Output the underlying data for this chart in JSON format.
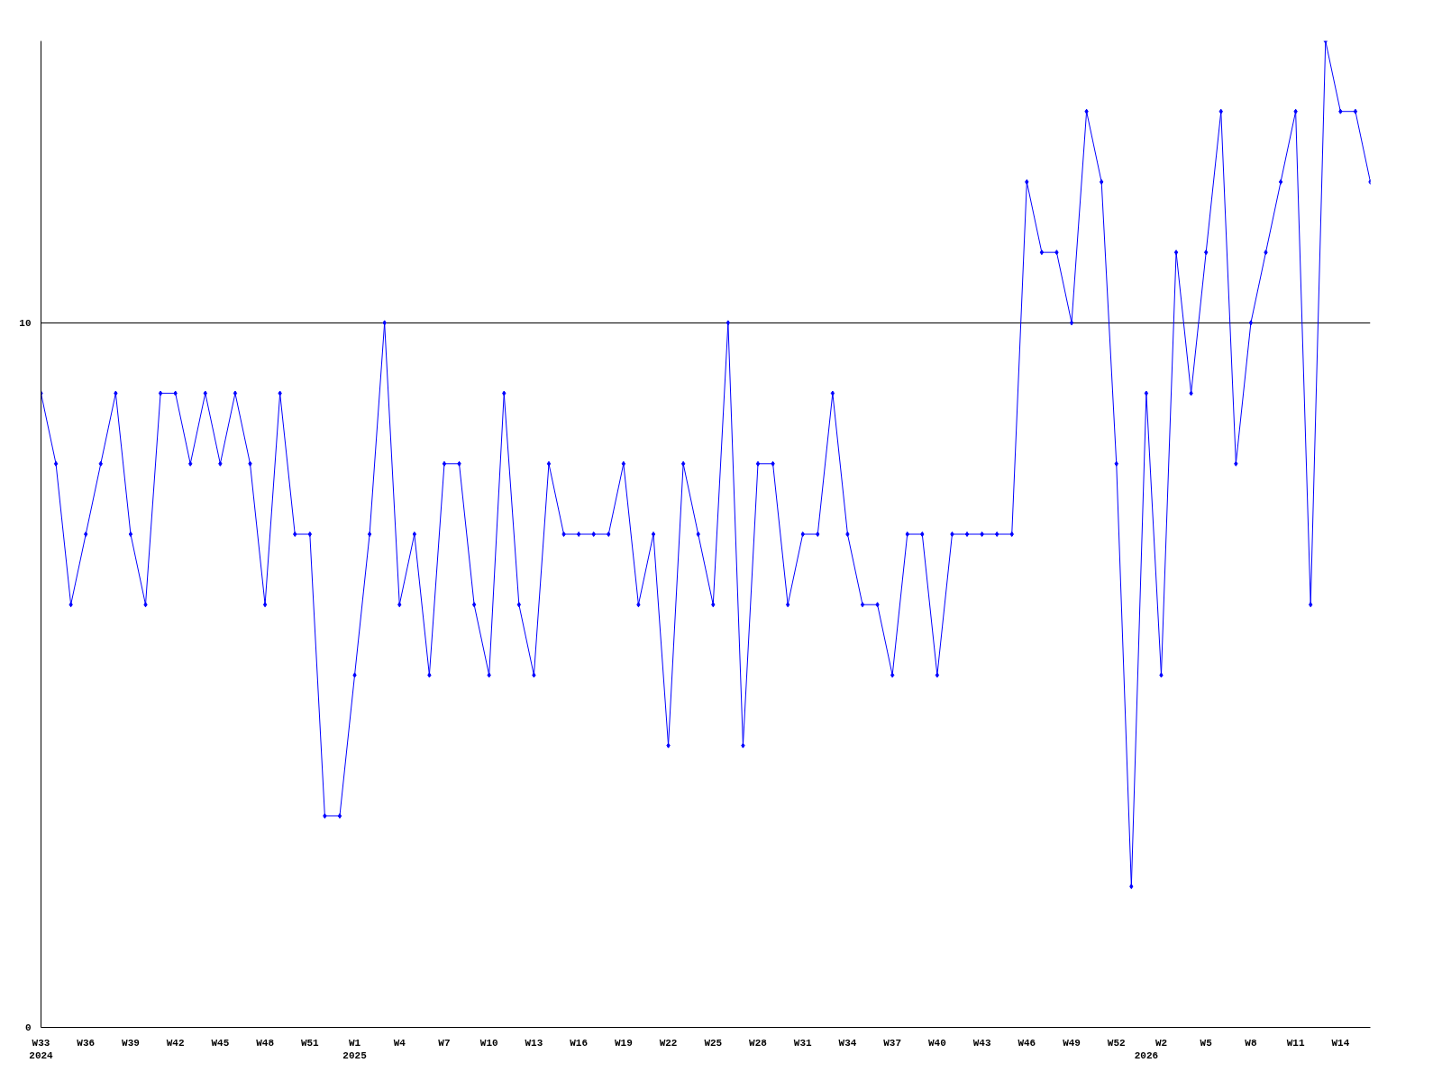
{
  "chart_data": {
    "type": "line",
    "categories": [
      "W33\n2024",
      null,
      null,
      "W36",
      null,
      null,
      "W39",
      null,
      null,
      "W42",
      null,
      null,
      "W45",
      null,
      null,
      "W48",
      null,
      null,
      "W51",
      null,
      null,
      "W1\n2025",
      null,
      null,
      "W4",
      null,
      null,
      "W7",
      null,
      null,
      "W10",
      null,
      null,
      "W13",
      null,
      null,
      "W16",
      null,
      null,
      "W19",
      null,
      null,
      "W22",
      null,
      null,
      "W25",
      null,
      null,
      "W28",
      null,
      null,
      "W31",
      null,
      null,
      "W34",
      null,
      null,
      "W37",
      null,
      null,
      "W40",
      null,
      null,
      "W43",
      null,
      null,
      "W46",
      null,
      null,
      "W49",
      null,
      null,
      "W52",
      null,
      "\n2026",
      "W2",
      null,
      null,
      "W5",
      null,
      null,
      "W8",
      null,
      null,
      "W11",
      null,
      null,
      "W14",
      null,
      null
    ],
    "series": [
      {
        "color": "#0000ff",
        "values": [
          9,
          8,
          6,
          7,
          8,
          9,
          7,
          6,
          9,
          9,
          8,
          9,
          8,
          9,
          8,
          6,
          9,
          7,
          7,
          3,
          3,
          5,
          7,
          10,
          6,
          7,
          5,
          8,
          8,
          6,
          5,
          9,
          6,
          5,
          8,
          7,
          7,
          7,
          7,
          8,
          6,
          7,
          4,
          8,
          7,
          6,
          10,
          4,
          8,
          8,
          6,
          7,
          7,
          9,
          7,
          6,
          6,
          5,
          7,
          7,
          5,
          7,
          7,
          7,
          7,
          7,
          12,
          11,
          11,
          10,
          13,
          12,
          8,
          2,
          9,
          5,
          11,
          9,
          11,
          13,
          8,
          10,
          11,
          12,
          13,
          6,
          14,
          13,
          13,
          12
        ]
      }
    ],
    "ylim": [
      0,
      14
    ],
    "yticks": [
      0,
      10
    ],
    "grid": "y",
    "marker": "diamond",
    "line_style": "solid"
  }
}
